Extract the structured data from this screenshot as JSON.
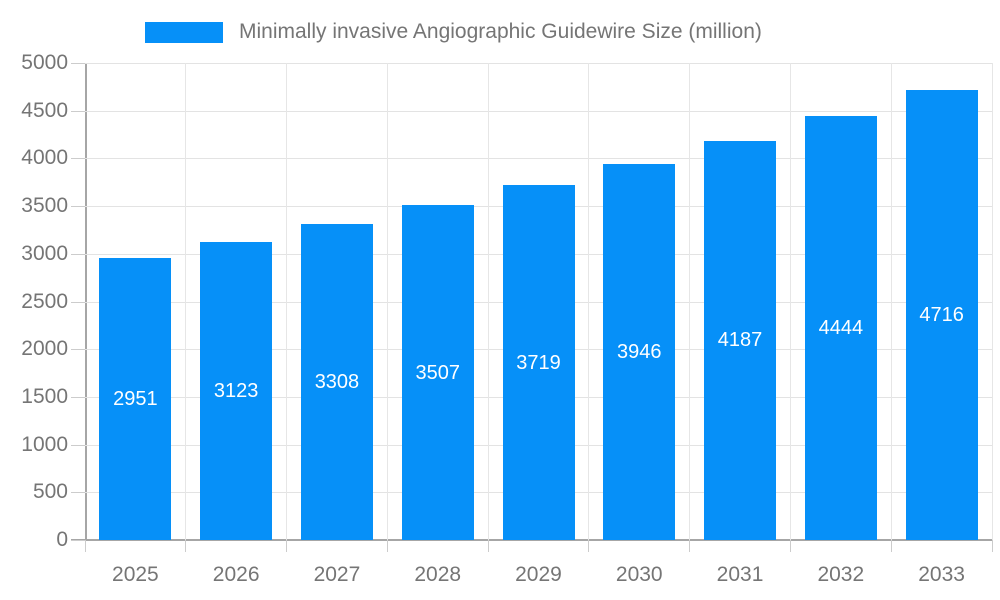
{
  "legend": {
    "label": "Minimally invasive Angiographic Guidewire Size (million)"
  },
  "chart_data": {
    "type": "bar",
    "title": "Minimally invasive Angiographic Guidewire Size (million)",
    "categories": [
      "2025",
      "2026",
      "2027",
      "2028",
      "2029",
      "2030",
      "2031",
      "2032",
      "2033"
    ],
    "values": [
      2951,
      3123,
      3308,
      3507,
      3719,
      3946,
      4187,
      4444,
      4716
    ],
    "xlabel": "",
    "ylabel": "",
    "ylim": [
      0,
      5000
    ],
    "ytick_step": 500,
    "y_tick_labels": [
      "0",
      "500",
      "1000",
      "1500",
      "2000",
      "2500",
      "3000",
      "3500",
      "4000",
      "4500",
      "5000"
    ],
    "grid": true,
    "legend_position": "top",
    "bar_labels_visible": true,
    "colors": {
      "bar": "#0690F8",
      "bar_label_text": "#ffffff",
      "axis_text": "#757575",
      "axis_line": "#a6a6a6",
      "gridline": "#e3e3e3",
      "background": "#ffffff"
    }
  }
}
